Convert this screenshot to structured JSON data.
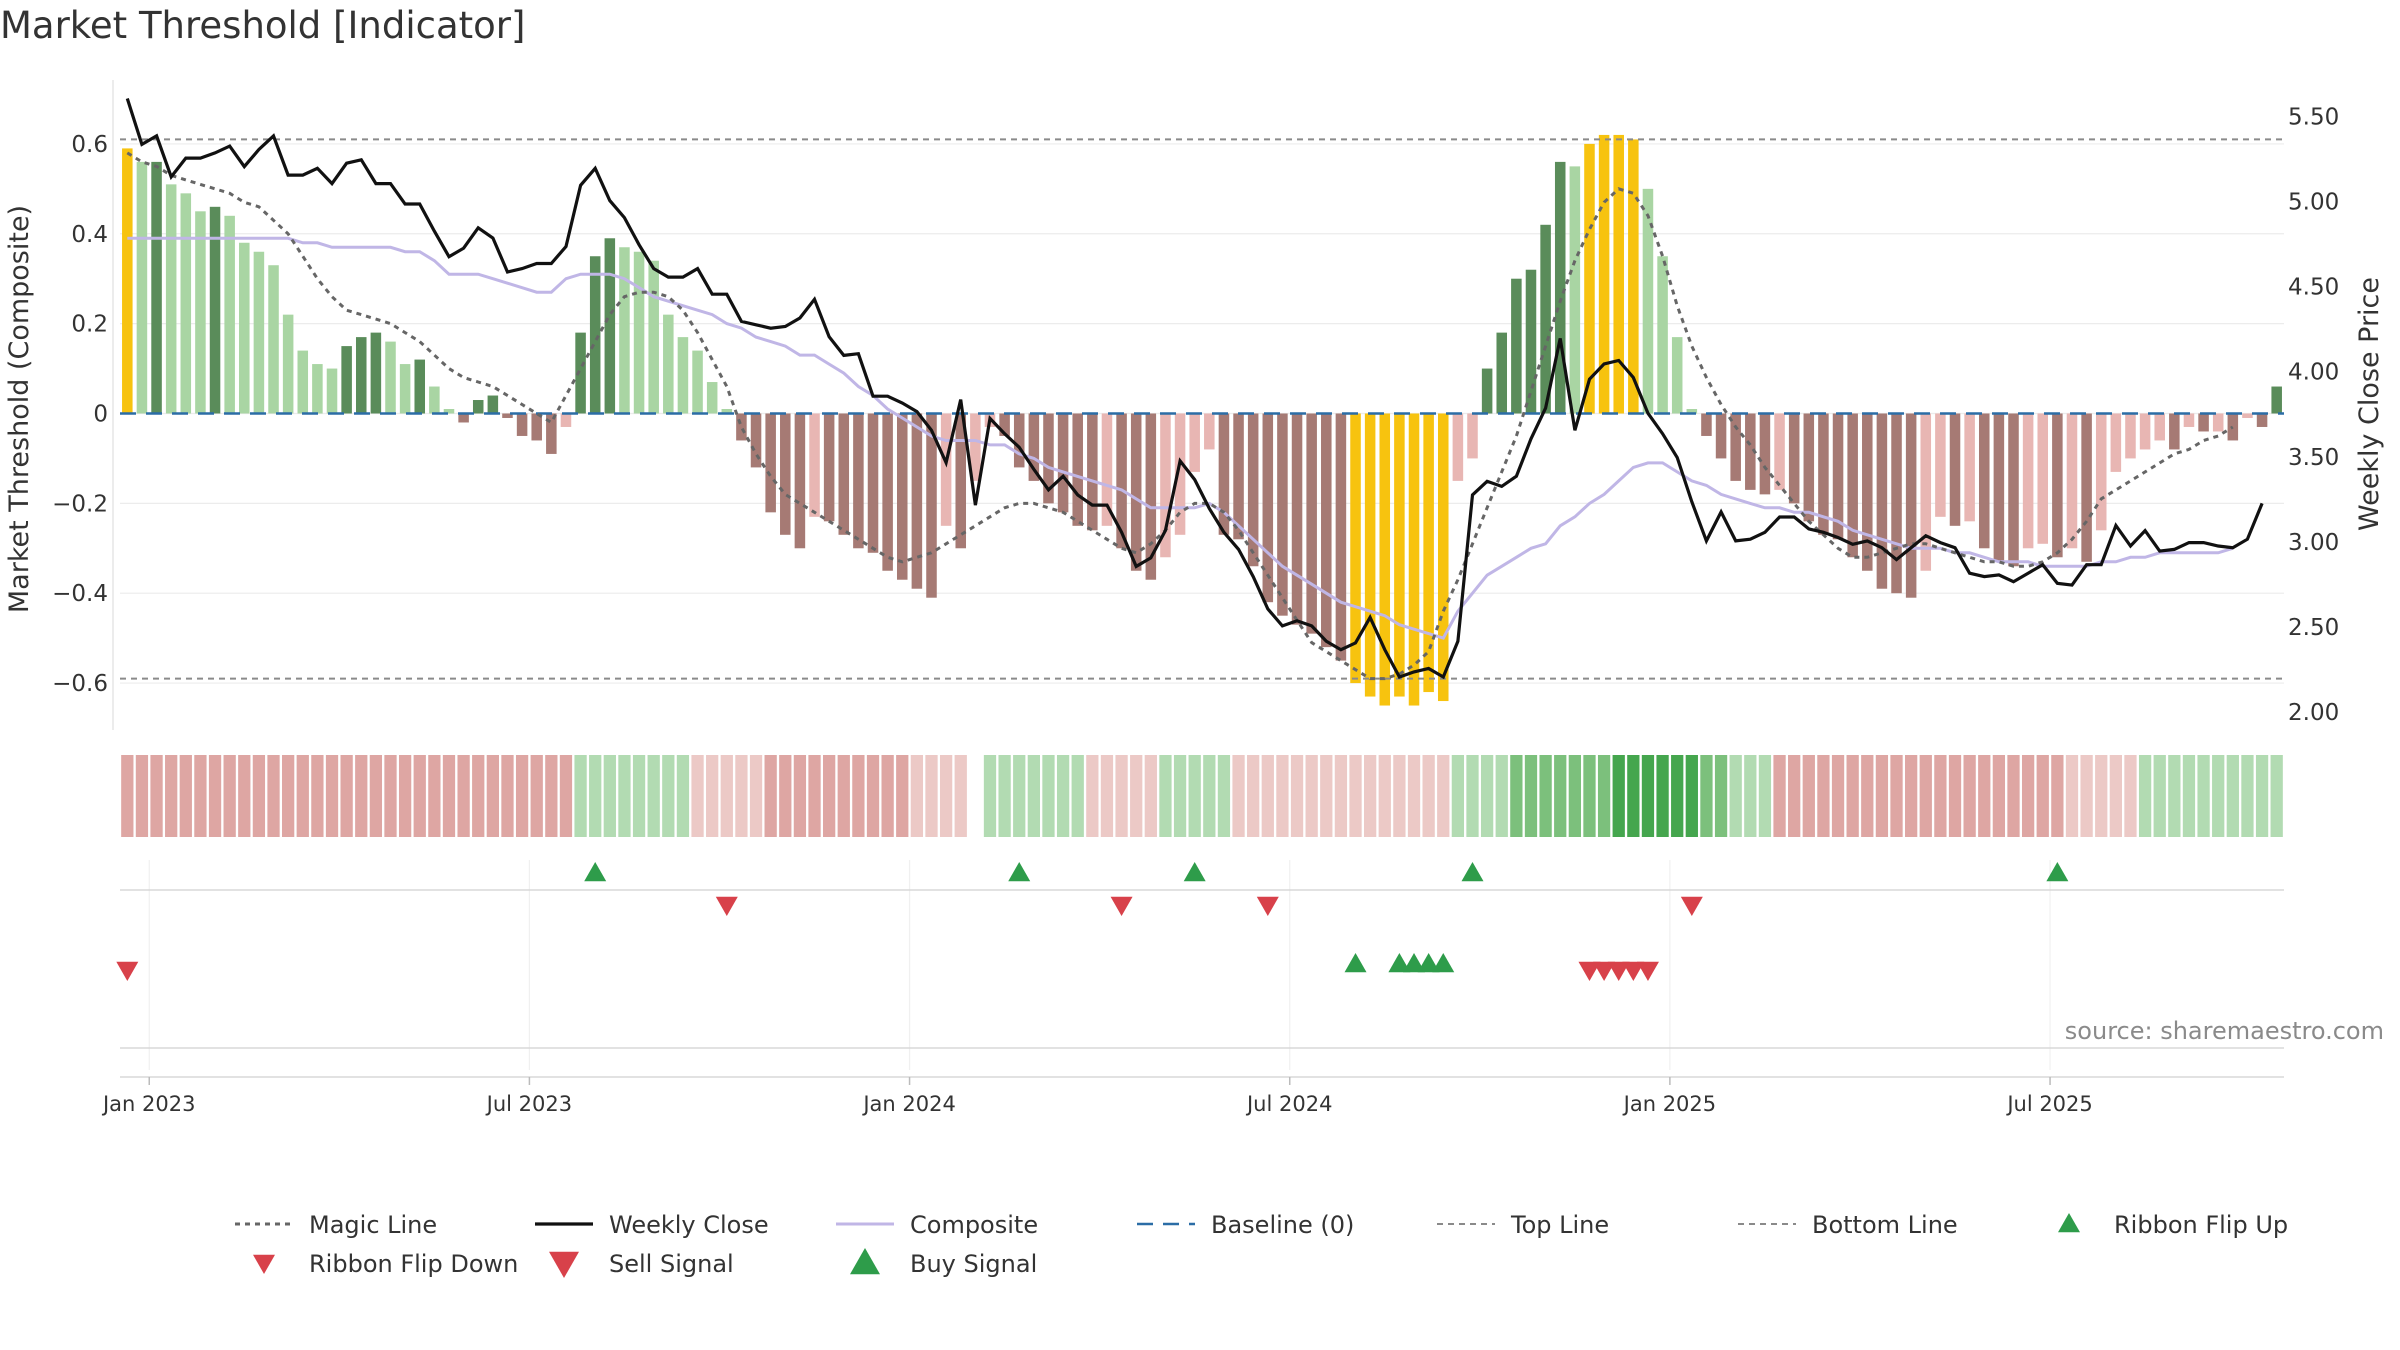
{
  "title": "Market Threshold [Indicator]",
  "source": "source: sharemaestro.com",
  "chart_data": {
    "type": "bar",
    "title": "Market Threshold [Indicator]",
    "ylabel_left": "Market Threshold (Composite)",
    "ylabel_right": "Weekly Close Price",
    "ylim_left": [
      -0.7,
      0.72
    ],
    "ylim_right": [
      1.9,
      5.65
    ],
    "left_ticks": [
      {
        "value": 0.6,
        "label": "0.6"
      },
      {
        "value": 0.4,
        "label": "0.4"
      },
      {
        "value": 0.2,
        "label": "0.2"
      },
      {
        "value": 0,
        "label": "0"
      },
      {
        "value": -0.2,
        "label": "−0.2"
      },
      {
        "value": -0.4,
        "label": "−0.4"
      },
      {
        "value": -0.6,
        "label": "−0.6"
      }
    ],
    "right_ticks": [
      {
        "value": 5.5,
        "label": "5.50"
      },
      {
        "value": 5.0,
        "label": "5.00"
      },
      {
        "value": 4.5,
        "label": "4.50"
      },
      {
        "value": 4.0,
        "label": "4.00"
      },
      {
        "value": 3.5,
        "label": "3.50"
      },
      {
        "value": 3.0,
        "label": "3.00"
      },
      {
        "value": 2.5,
        "label": "2.50"
      },
      {
        "value": 2.0,
        "label": "2.00"
      }
    ],
    "x_ticks": [
      {
        "week": 1.5,
        "label": "Jan 2023"
      },
      {
        "week": 27.5,
        "label": "Jul 2023"
      },
      {
        "week": 53.5,
        "label": "Jan 2024"
      },
      {
        "week": 79.5,
        "label": "Jul 2024"
      },
      {
        "week": 105.5,
        "label": "Jan 2025"
      },
      {
        "week": 131.5,
        "label": "Jul 2025"
      }
    ],
    "top_line": 0.61,
    "bottom_line": -0.59,
    "baseline": 0,
    "colors": {
      "bar_strong_pos": "#5a8c5a",
      "bar_weak_pos": "#a9d5a3",
      "bar_strong_neg": "#a67a74",
      "bar_weak_neg": "#e8b6b3",
      "bar_extreme": "#f7c30f",
      "weekly_close": "#111111",
      "composite": "#c0b6e6",
      "magic_line": "#666666",
      "baseline": "#2b6da6",
      "threshold_lines": "#8a8a8a",
      "buy": "#2e9c4a",
      "sell": "#d8414a",
      "ribbon_up": "#2e9c4a",
      "ribbon_down": "#d8414a"
    },
    "series": [
      {
        "name": "Composite Bars",
        "values": [
          0.59,
          0.56,
          0.56,
          0.51,
          0.49,
          0.45,
          0.46,
          0.44,
          0.38,
          0.36,
          0.33,
          0.22,
          0.14,
          0.11,
          0.1,
          0.15,
          0.17,
          0.18,
          0.16,
          0.11,
          0.12,
          0.06,
          0.01,
          -0.02,
          0.03,
          0.04,
          -0.01,
          -0.05,
          -0.06,
          -0.09,
          -0.03,
          0.18,
          0.35,
          0.39,
          0.37,
          0.36,
          0.34,
          0.22,
          0.17,
          0.14,
          0.07,
          0.01,
          -0.06,
          -0.12,
          -0.22,
          -0.27,
          -0.3,
          -0.23,
          -0.24,
          -0.27,
          -0.3,
          -0.31,
          -0.35,
          -0.37,
          -0.39,
          -0.41,
          -0.25,
          -0.3,
          -0.15,
          -0.03,
          -0.05,
          -0.12,
          -0.15,
          -0.2,
          -0.22,
          -0.25,
          -0.26,
          -0.25,
          -0.3,
          -0.35,
          -0.37,
          -0.32,
          -0.27,
          -0.13,
          -0.08,
          -0.27,
          -0.28,
          -0.34,
          -0.42,
          -0.45,
          -0.47,
          -0.49,
          -0.52,
          -0.55,
          -0.6,
          -0.63,
          -0.65,
          -0.63,
          -0.65,
          -0.62,
          -0.64,
          -0.15,
          -0.1,
          0.1,
          0.18,
          0.3,
          0.32,
          0.42,
          0.56,
          0.55,
          0.6,
          0.62,
          0.62,
          0.61,
          0.5,
          0.35,
          0.17,
          0.01,
          -0.05,
          -0.1,
          -0.15,
          -0.17,
          -0.18,
          -0.17,
          -0.2,
          -0.24,
          -0.27,
          -0.28,
          -0.32,
          -0.35,
          -0.39,
          -0.4,
          -0.41,
          -0.35,
          -0.23,
          -0.25,
          -0.24,
          -0.3,
          -0.33,
          -0.34,
          -0.3,
          -0.29,
          -0.32,
          -0.3,
          -0.33,
          -0.26,
          -0.13,
          -0.1,
          -0.08,
          -0.06,
          -0.08,
          -0.03,
          -0.04,
          -0.04,
          -0.06,
          -0.01,
          -0.03,
          0.06
        ]
      },
      {
        "name": "Weekly Close",
        "values": [
          5.6,
          5.33,
          5.38,
          5.14,
          5.25,
          5.25,
          5.28,
          5.32,
          5.2,
          5.3,
          5.38,
          5.15,
          5.15,
          5.19,
          5.1,
          5.22,
          5.24,
          5.1,
          5.1,
          4.98,
          4.98,
          4.82,
          4.67,
          4.72,
          4.84,
          4.78,
          4.58,
          4.6,
          4.63,
          4.63,
          4.73,
          5.09,
          5.19,
          5.0,
          4.9,
          4.74,
          4.6,
          4.55,
          4.55,
          4.6,
          4.45,
          4.45,
          4.29,
          4.27,
          4.25,
          4.26,
          4.31,
          4.42,
          4.2,
          4.09,
          4.1,
          3.85,
          3.85,
          3.81,
          3.76,
          3.65,
          3.46,
          3.83,
          3.21,
          3.72,
          3.63,
          3.55,
          3.42,
          3.3,
          3.38,
          3.27,
          3.21,
          3.21,
          3.05,
          2.85,
          2.9,
          3.06,
          3.47,
          3.36,
          3.19,
          3.05,
          2.95,
          2.79,
          2.6,
          2.5,
          2.53,
          2.5,
          2.41,
          2.36,
          2.4,
          2.55,
          2.36,
          2.2,
          2.23,
          2.25,
          2.2,
          2.41,
          3.27,
          3.35,
          3.32,
          3.38,
          3.6,
          3.78,
          4.19,
          3.65,
          3.95,
          4.04,
          4.06,
          3.96,
          3.75,
          3.63,
          3.49,
          3.23,
          3.0,
          3.17,
          3.0,
          3.01,
          3.05,
          3.14,
          3.14,
          3.07,
          3.05,
          3.02,
          2.98,
          3.0,
          2.96,
          2.89,
          2.96,
          3.03,
          2.99,
          2.96,
          2.81,
          2.79,
          2.8,
          2.76,
          2.81,
          2.86,
          2.75,
          2.74,
          2.86,
          2.86,
          3.09,
          2.97,
          3.06,
          2.94,
          2.95,
          2.99,
          2.99,
          2.97,
          2.96,
          3.01,
          3.22
        ]
      },
      {
        "name": "Composite",
        "values": [
          0.39,
          0.39,
          0.39,
          0.39,
          0.39,
          0.39,
          0.39,
          0.39,
          0.39,
          0.39,
          0.39,
          0.39,
          0.38,
          0.38,
          0.37,
          0.37,
          0.37,
          0.37,
          0.37,
          0.36,
          0.36,
          0.34,
          0.31,
          0.31,
          0.31,
          0.3,
          0.29,
          0.28,
          0.27,
          0.27,
          0.3,
          0.31,
          0.31,
          0.31,
          0.3,
          0.28,
          0.26,
          0.25,
          0.24,
          0.23,
          0.22,
          0.2,
          0.19,
          0.17,
          0.16,
          0.15,
          0.13,
          0.13,
          0.11,
          0.09,
          0.06,
          0.04,
          0.01,
          -0.01,
          -0.03,
          -0.05,
          -0.06,
          -0.06,
          -0.06,
          -0.07,
          -0.07,
          -0.09,
          -0.1,
          -0.12,
          -0.13,
          -0.14,
          -0.15,
          -0.16,
          -0.17,
          -0.19,
          -0.21,
          -0.21,
          -0.21,
          -0.21,
          -0.2,
          -0.22,
          -0.25,
          -0.28,
          -0.31,
          -0.34,
          -0.36,
          -0.38,
          -0.4,
          -0.42,
          -0.43,
          -0.44,
          -0.45,
          -0.47,
          -0.48,
          -0.49,
          -0.5,
          -0.44,
          -0.4,
          -0.36,
          -0.34,
          -0.32,
          -0.3,
          -0.29,
          -0.25,
          -0.23,
          -0.2,
          -0.18,
          -0.15,
          -0.12,
          -0.11,
          -0.11,
          -0.13,
          -0.15,
          -0.16,
          -0.18,
          -0.19,
          -0.2,
          -0.21,
          -0.21,
          -0.22,
          -0.22,
          -0.23,
          -0.24,
          -0.26,
          -0.27,
          -0.28,
          -0.29,
          -0.3,
          -0.3,
          -0.3,
          -0.31,
          -0.31,
          -0.32,
          -0.33,
          -0.33,
          -0.33,
          -0.34,
          -0.34,
          -0.34,
          -0.34,
          -0.33,
          -0.33,
          -0.32,
          -0.32,
          -0.31,
          -0.31,
          -0.31,
          -0.31,
          -0.31,
          -0.3
        ]
      },
      {
        "name": "Magic Line",
        "values": [
          0.58,
          0.56,
          0.55,
          0.53,
          0.52,
          0.51,
          0.5,
          0.49,
          0.47,
          0.46,
          0.43,
          0.4,
          0.35,
          0.3,
          0.26,
          0.23,
          0.22,
          0.21,
          0.2,
          0.18,
          0.16,
          0.13,
          0.1,
          0.08,
          0.07,
          0.06,
          0.04,
          0.02,
          0.0,
          -0.02,
          0.04,
          0.1,
          0.16,
          0.22,
          0.26,
          0.27,
          0.27,
          0.26,
          0.23,
          0.18,
          0.12,
          0.06,
          -0.03,
          -0.09,
          -0.14,
          -0.18,
          -0.2,
          -0.22,
          -0.24,
          -0.26,
          -0.28,
          -0.3,
          -0.32,
          -0.33,
          -0.32,
          -0.31,
          -0.29,
          -0.27,
          -0.25,
          -0.23,
          -0.21,
          -0.2,
          -0.2,
          -0.21,
          -0.22,
          -0.24,
          -0.26,
          -0.28,
          -0.3,
          -0.31,
          -0.29,
          -0.26,
          -0.22,
          -0.2,
          -0.2,
          -0.22,
          -0.26,
          -0.31,
          -0.36,
          -0.41,
          -0.46,
          -0.51,
          -0.53,
          -0.55,
          -0.57,
          -0.59,
          -0.59,
          -0.58,
          -0.56,
          -0.53,
          -0.44,
          -0.37,
          -0.29,
          -0.21,
          -0.13,
          -0.05,
          0.05,
          0.15,
          0.25,
          0.34,
          0.41,
          0.47,
          0.5,
          0.49,
          0.44,
          0.35,
          0.24,
          0.15,
          0.08,
          0.02,
          -0.03,
          -0.07,
          -0.12,
          -0.16,
          -0.2,
          -0.24,
          -0.27,
          -0.3,
          -0.32,
          -0.32,
          -0.31,
          -0.3,
          -0.29,
          -0.29,
          -0.3,
          -0.31,
          -0.32,
          -0.33,
          -0.33,
          -0.34,
          -0.34,
          -0.33,
          -0.31,
          -0.28,
          -0.24,
          -0.19,
          -0.17,
          -0.15,
          -0.13,
          -0.11,
          -0.09,
          -0.08,
          -0.06,
          -0.05,
          -0.03
        ]
      }
    ],
    "ribbon": [
      -2,
      -2,
      -2,
      -2,
      -2,
      -2,
      -2,
      -2,
      -2,
      -2,
      -2,
      -2,
      -2,
      -2,
      -2,
      -2,
      -2,
      -2,
      -2,
      -2,
      -2,
      -2,
      -2,
      -2,
      -2,
      -2,
      -2,
      -2,
      -2,
      -2,
      -2,
      1,
      1,
      1,
      1,
      1,
      1,
      1,
      1,
      -1,
      -1,
      -1,
      -1,
      -1,
      -2,
      -2,
      -2,
      -2,
      -2,
      -2,
      -2,
      -2,
      -2,
      -2,
      -1,
      -1,
      -1,
      -1,
      0,
      1,
      1,
      1,
      1,
      1,
      1,
      1,
      -1,
      -1,
      -1,
      -1,
      -1,
      1,
      1,
      1,
      1,
      1,
      -1,
      -1,
      -1,
      -1,
      -1,
      -1,
      -1,
      -1,
      -1,
      -1,
      -1,
      -1,
      -1,
      -1,
      -1,
      1,
      1,
      1,
      1,
      2,
      2,
      2,
      2,
      2,
      2,
      2,
      3,
      3,
      3,
      3,
      3,
      3,
      2,
      2,
      1,
      1,
      1,
      -2,
      -2,
      -2,
      -2,
      -2,
      -2,
      -2,
      -2,
      -2,
      -2,
      -2,
      -2,
      -2,
      -2,
      -2,
      -2,
      -2,
      -2,
      -2,
      -2,
      -1,
      -1,
      -1,
      -1,
      -1,
      1,
      1,
      1,
      1,
      1,
      1,
      1,
      1,
      1,
      1
    ],
    "ribbon_flip_up_weeks": [
      32,
      61,
      73,
      92,
      132
    ],
    "ribbon_flip_down_weeks": [
      41,
      68,
      78,
      107
    ],
    "sell_signal_weeks": [
      0,
      100,
      101,
      102,
      103,
      104
    ],
    "buy_signal_weeks": [
      84,
      87,
      88,
      89,
      90
    ],
    "legend": [
      "Magic Line",
      "Weekly Close",
      "Composite",
      "Baseline (0)",
      "Top Line",
      "Bottom Line",
      "Ribbon Flip Up",
      "Ribbon Flip Down",
      "Sell Signal",
      "Buy Signal"
    ]
  }
}
